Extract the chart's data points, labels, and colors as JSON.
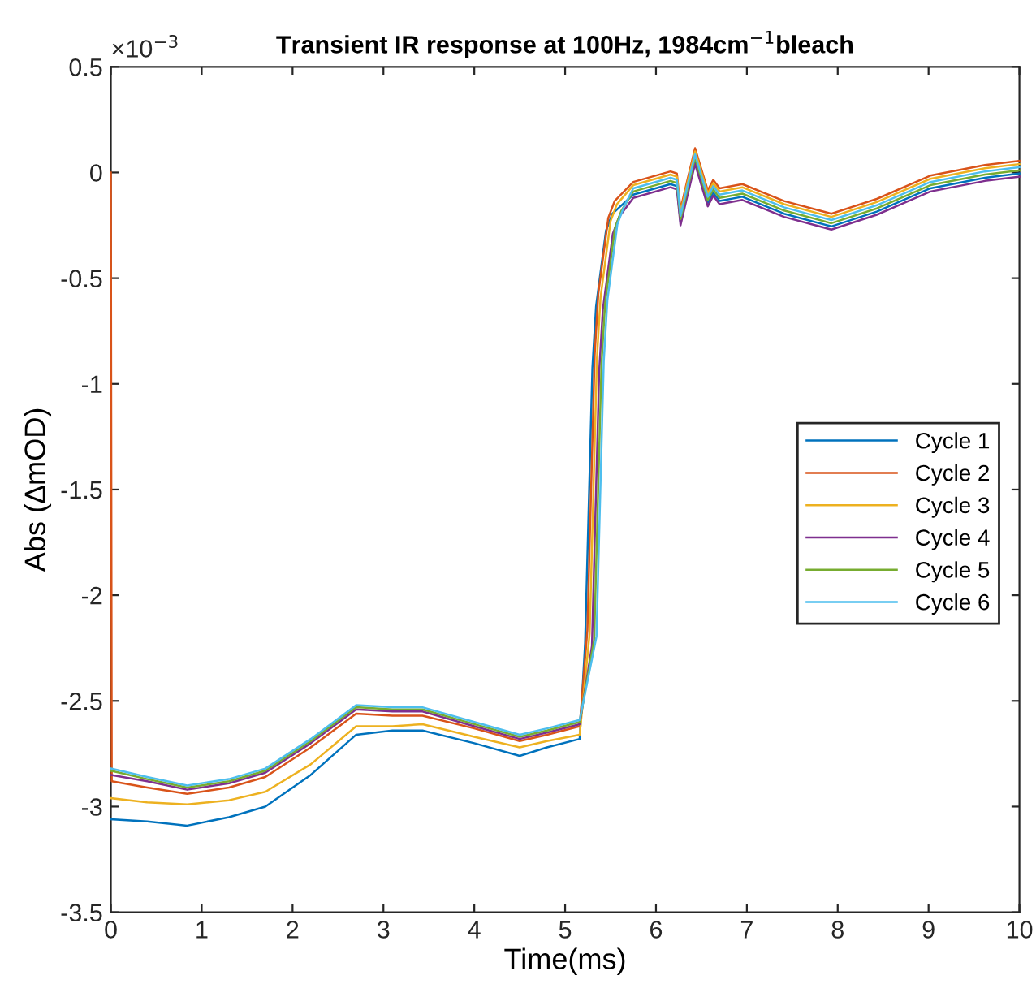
{
  "chart_data": {
    "type": "line",
    "title": "Transient IR response at 100Hz, 1984cm$^{−1}$bleach",
    "xlabel": "Time(ms)",
    "ylabel": "Abs (∆mOD)",
    "annotations": [
      "×10$^{−3}$"
    ],
    "series": [
      {
        "name": "Cycle 1",
        "color": "#0072bd",
        "x": [
          0,
          0.4,
          0.84,
          1.3,
          1.7,
          2.2,
          2.7,
          3.1,
          3.43,
          4.0,
          4.5,
          4.8,
          5.16,
          5.22,
          5.3,
          5.34,
          5.45,
          5.52,
          5.75,
          6.16,
          6.23,
          6.27,
          6.34,
          6.43,
          6.57,
          6.63,
          6.7,
          6.95,
          7.41,
          7.93,
          8.43,
          9.02,
          9.62,
          10
        ],
        "values": [
          -3.06,
          -3.07,
          -3.09,
          -3.05,
          -3.0,
          -2.85,
          -2.66,
          -2.64,
          -2.64,
          -2.7,
          -2.76,
          -2.72,
          -2.68,
          -2.225,
          -0.925,
          -0.635,
          -0.275,
          -0.195,
          -0.105,
          -0.055,
          -0.065,
          -0.235,
          -0.105,
          0.055,
          -0.145,
          -0.095,
          -0.135,
          -0.115,
          -0.195,
          -0.255,
          -0.185,
          -0.075,
          -0.025,
          -0.005
        ]
      },
      {
        "name": "Cycle 2",
        "color": "#d95319",
        "x": [
          0,
          0.01,
          0.4,
          0.84,
          1.3,
          1.7,
          2.2,
          2.7,
          3.1,
          3.43,
          4.0,
          4.5,
          4.8,
          5.16,
          5.245,
          5.325,
          5.365,
          5.475,
          5.545,
          5.75,
          6.16,
          6.23,
          6.27,
          6.34,
          6.43,
          6.57,
          6.63,
          6.7,
          6.95,
          7.41,
          7.93,
          8.43,
          9.02,
          9.62,
          10
        ],
        "values": [
          0.0,
          -2.88,
          -2.91,
          -2.94,
          -2.91,
          -2.86,
          -2.72,
          -2.56,
          -2.57,
          -2.57,
          -2.63,
          -2.69,
          -2.66,
          -2.62,
          -2.165,
          -0.865,
          -0.575,
          -0.215,
          -0.135,
          -0.045,
          0.005,
          -0.005,
          -0.175,
          -0.045,
          0.115,
          -0.085,
          -0.035,
          -0.075,
          -0.055,
          -0.135,
          -0.195,
          -0.125,
          -0.015,
          0.035,
          0.055
        ]
      },
      {
        "name": "Cycle 3",
        "color": "#edb120",
        "x": [
          0,
          0.4,
          0.84,
          1.3,
          1.7,
          2.2,
          2.7,
          3.1,
          3.43,
          4.0,
          4.5,
          4.8,
          5.16,
          5.27,
          5.35,
          5.39,
          5.5,
          5.57,
          5.75,
          6.16,
          6.23,
          6.27,
          6.34,
          6.43,
          6.57,
          6.63,
          6.7,
          6.95,
          7.41,
          7.93,
          8.43,
          9.02,
          9.62,
          10
        ],
        "values": [
          -2.96,
          -2.98,
          -2.99,
          -2.97,
          -2.93,
          -2.8,
          -2.62,
          -2.62,
          -2.61,
          -2.67,
          -2.72,
          -2.69,
          -2.66,
          -2.18,
          -0.88,
          -0.59,
          -0.23,
          -0.15,
          -0.06,
          -0.01,
          -0.02,
          -0.19,
          -0.06,
          0.1,
          -0.1,
          -0.05,
          -0.09,
          -0.07,
          -0.15,
          -0.21,
          -0.14,
          -0.03,
          0.02,
          0.04
        ]
      },
      {
        "name": "Cycle 4",
        "color": "#7e2f8e",
        "x": [
          0,
          0.4,
          0.84,
          1.3,
          1.7,
          2.2,
          2.7,
          3.1,
          3.43,
          4.0,
          4.5,
          4.8,
          5.16,
          5.295,
          5.375,
          5.415,
          5.525,
          5.595,
          5.75,
          6.16,
          6.23,
          6.27,
          6.34,
          6.43,
          6.57,
          6.63,
          6.7,
          6.95,
          7.41,
          7.93,
          8.43,
          9.02,
          9.62,
          10
        ],
        "values": [
          -2.85,
          -2.88,
          -2.92,
          -2.89,
          -2.84,
          -2.7,
          -2.54,
          -2.55,
          -2.55,
          -2.62,
          -2.68,
          -2.65,
          -2.61,
          -2.24,
          -0.94,
          -0.65,
          -0.29,
          -0.21,
          -0.12,
          -0.07,
          -0.08,
          -0.25,
          -0.12,
          0.04,
          -0.16,
          -0.11,
          -0.15,
          -0.13,
          -0.21,
          -0.27,
          -0.2,
          -0.09,
          -0.04,
          -0.02
        ]
      },
      {
        "name": "Cycle 5",
        "color": "#77ac30",
        "x": [
          0,
          0.4,
          0.84,
          1.3,
          1.7,
          2.2,
          2.7,
          3.1,
          3.43,
          4.0,
          4.5,
          4.8,
          5.16,
          5.32,
          5.4,
          5.44,
          5.55,
          5.62,
          5.75,
          6.16,
          6.23,
          6.27,
          6.34,
          6.43,
          6.57,
          6.63,
          6.7,
          6.95,
          7.41,
          7.93,
          8.43,
          9.02,
          9.62,
          10
        ],
        "values": [
          -2.83,
          -2.87,
          -2.91,
          -2.88,
          -2.83,
          -2.69,
          -2.53,
          -2.54,
          -2.54,
          -2.61,
          -2.67,
          -2.64,
          -2.6,
          -2.21,
          -0.91,
          -0.62,
          -0.26,
          -0.18,
          -0.09,
          -0.04,
          -0.05,
          -0.22,
          -0.09,
          0.07,
          -0.13,
          -0.08,
          -0.12,
          -0.1,
          -0.18,
          -0.24,
          -0.17,
          -0.06,
          -0.01,
          0.01
        ]
      },
      {
        "name": "Cycle 6",
        "color": "#4dbeee",
        "x": [
          0,
          0.4,
          0.84,
          1.3,
          1.7,
          2.2,
          2.7,
          3.1,
          3.43,
          4.0,
          4.5,
          4.8,
          5.16,
          5.345,
          5.425,
          5.465,
          5.575,
          5.645,
          5.75,
          6.16,
          6.23,
          6.27,
          6.34,
          6.43,
          6.57,
          6.63,
          6.7,
          6.95,
          7.41,
          7.93,
          8.43,
          9.02,
          9.62,
          10
        ],
        "values": [
          -2.82,
          -2.86,
          -2.9,
          -2.87,
          -2.82,
          -2.68,
          -2.52,
          -2.53,
          -2.53,
          -2.6,
          -2.66,
          -2.63,
          -2.59,
          -2.195,
          -0.895,
          -0.605,
          -0.245,
          -0.165,
          -0.075,
          -0.025,
          -0.035,
          -0.205,
          -0.075,
          0.085,
          -0.115,
          -0.065,
          -0.105,
          -0.085,
          -0.165,
          -0.225,
          -0.155,
          -0.045,
          0.005,
          0.025
        ]
      }
    ],
    "xlim": [
      0,
      10
    ],
    "xticks": [
      0,
      1,
      2,
      3,
      4,
      5,
      6,
      7,
      8,
      9,
      10
    ],
    "ylim": [
      -3.5,
      0.5
    ],
    "yticks": [
      -3.5,
      -3,
      -2.5,
      -2,
      -1.5,
      -1,
      -0.5,
      0,
      0.5
    ],
    "grid": false,
    "legend": "right",
    "marker": "none",
    "line_style": "solid"
  }
}
